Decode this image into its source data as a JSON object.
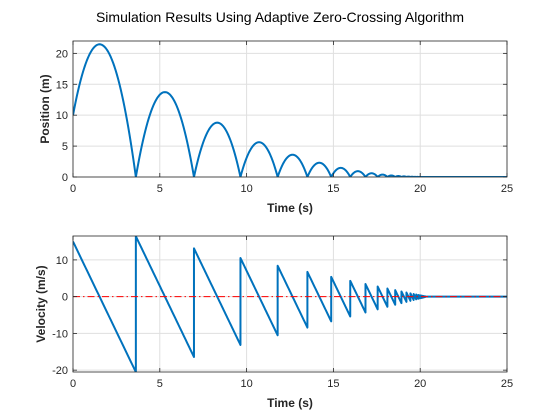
{
  "chart_data": {
    "title": "Simulation Results Using Adaptive Zero-Crossing Algorithm",
    "colors": {
      "series": "#0072BD",
      "reference": "#FF0000"
    },
    "plots": [
      {
        "type": "line",
        "xlabel": "Time (s)",
        "ylabel": "Position (m)",
        "xlim": [
          0,
          25
        ],
        "ylim": [
          0,
          22
        ],
        "xticks": [
          0,
          5,
          10,
          15,
          20,
          25
        ],
        "yticks": [
          0,
          5,
          10,
          15,
          20
        ],
        "grid": true,
        "series": [
          {
            "style": "solid",
            "model": {
              "initial_position": 10,
              "initial_velocity": 15,
              "gravity": 9.81,
              "restitution": 0.8,
              "rest_time": 20.3
            }
          }
        ]
      },
      {
        "type": "line",
        "xlabel": "Time (s)",
        "ylabel": "Velocity (m/s)",
        "xlim": [
          0,
          25
        ],
        "ylim": [
          -20.5,
          16.5
        ],
        "xticks": [
          0,
          5,
          10,
          15,
          20,
          25
        ],
        "yticks": [
          -20,
          -10,
          0,
          10
        ],
        "grid": true,
        "series": [
          {
            "style": "solid",
            "model": {
              "initial_position": 10,
              "initial_velocity": 15,
              "gravity": 9.81,
              "restitution": 0.8,
              "rest_time": 20.3
            }
          },
          {
            "style": "dash-dot",
            "x": [
              0,
              25
            ],
            "y": [
              0,
              0
            ]
          }
        ]
      }
    ]
  }
}
